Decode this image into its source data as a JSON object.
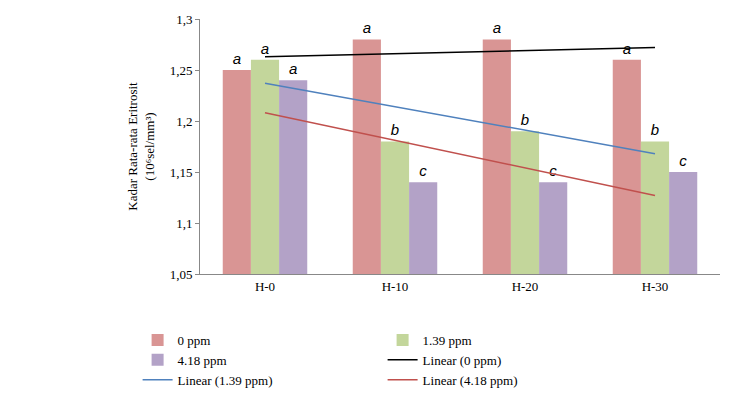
{
  "chart_data": {
    "type": "bar",
    "y_label": "Kadar Rata-rata Eritrosit (10⁶sel/mm³)",
    "categories": [
      "H-0",
      "H-10",
      "H-20",
      "H-30"
    ],
    "ylim": [
      1.05,
      1.3
    ],
    "yticks": [
      {
        "value": 1.05,
        "label": "1,05"
      },
      {
        "value": 1.1,
        "label": "1,1"
      },
      {
        "value": 1.15,
        "label": "1,15"
      },
      {
        "value": 1.2,
        "label": "1,2"
      },
      {
        "value": 1.25,
        "label": "1,25"
      },
      {
        "value": 1.3,
        "label": "1,3"
      }
    ],
    "grid": false,
    "legend": "bottom",
    "series": [
      {
        "name": "0 ppm",
        "type": "bar",
        "color": "#d99594",
        "values": [
          1.25,
          1.28,
          1.28,
          1.26
        ],
        "annotations": [
          "a",
          "a",
          "a",
          "a"
        ]
      },
      {
        "name": "1.39 ppm",
        "type": "bar",
        "color": "#c3d69b",
        "values": [
          1.26,
          1.18,
          1.19,
          1.18
        ],
        "annotations": [
          "a",
          "b",
          "b",
          "b"
        ]
      },
      {
        "name": "4.18 ppm",
        "type": "bar",
        "color": "#b3a2c7",
        "values": [
          1.24,
          1.14,
          1.14,
          1.15
        ],
        "annotations": [
          "a",
          "c",
          "c",
          "c"
        ]
      },
      {
        "name": "Linear (0 ppm)",
        "type": "line",
        "color": "#000000",
        "values": [
          1.263,
          1.266,
          1.269,
          1.272
        ]
      },
      {
        "name": "Linear (1.39 ppm)",
        "type": "line",
        "color": "#4f81bd",
        "values": [
          1.237,
          1.214,
          1.191,
          1.168
        ]
      },
      {
        "name": "Linear (4.18 ppm)",
        "type": "line",
        "color": "#c0504d",
        "values": [
          1.208,
          1.181,
          1.154,
          1.127
        ]
      }
    ]
  }
}
